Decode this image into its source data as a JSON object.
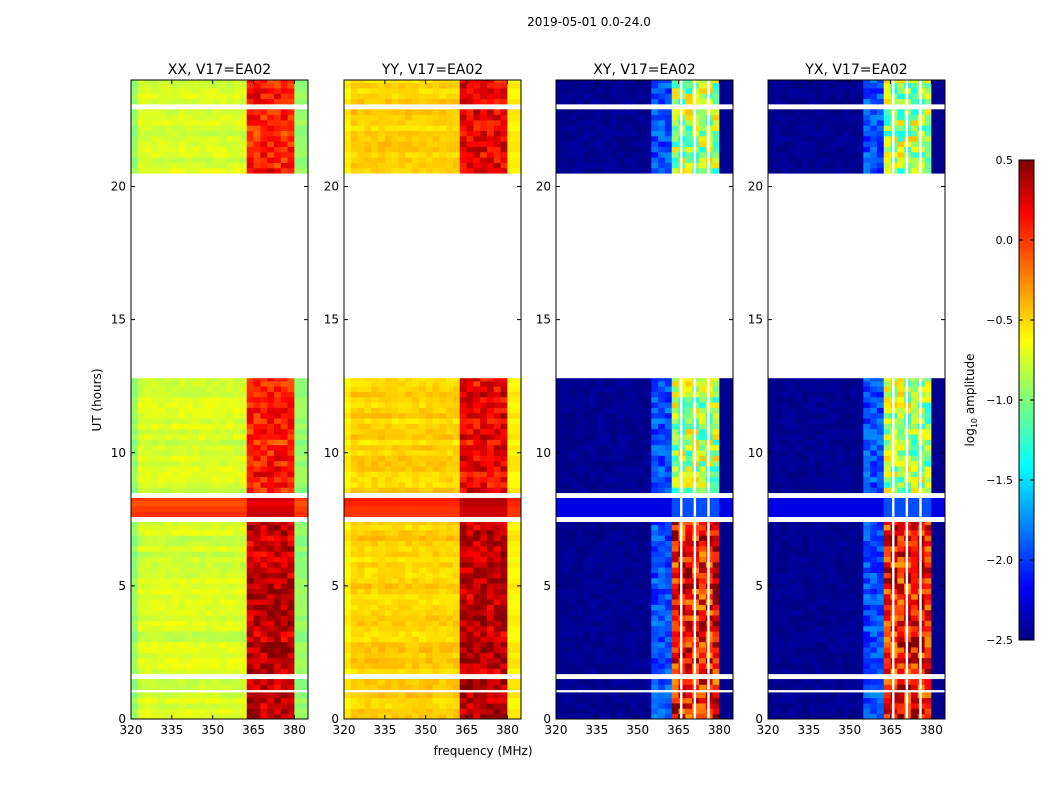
{
  "chart_data": {
    "type": "heatmap",
    "title": "2019-05-01 0.0-24.0",
    "xlabel": "frequency (MHz)",
    "ylabel": "UT (hours)",
    "xlim": [
      320,
      385
    ],
    "ylim": [
      0,
      24
    ],
    "xticks": [
      "320",
      "335",
      "350",
      "365",
      "380"
    ],
    "xtick_values": [
      320,
      335,
      350,
      365,
      380
    ],
    "yticks": [
      "0",
      "5",
      "10",
      "15",
      "20"
    ],
    "ytick_values": [
      0,
      5,
      10,
      15,
      20
    ],
    "colorbar": {
      "label_prefix": "log",
      "label_sub": "10",
      "label_suffix": " amplitude",
      "range": [
        -2.5,
        0.5
      ],
      "ticks": [
        "0.5",
        "0.0",
        "−0.5",
        "−1.0",
        "−1.5",
        "−2.0",
        "−2.5"
      ],
      "tick_values": [
        0.5,
        0.0,
        -0.5,
        -1.0,
        -1.5,
        -2.0,
        -2.5
      ],
      "colormap": "jet"
    },
    "data_segments_hours": [
      [
        0,
        1.0
      ],
      [
        1.1,
        1.5
      ],
      [
        1.7,
        7.4
      ],
      [
        7.6,
        8.3
      ],
      [
        8.5,
        12.8
      ],
      [
        20.5,
        22.9
      ],
      [
        23.1,
        24
      ]
    ],
    "bright_band_mhz": [
      362,
      380
    ],
    "flagged_channels_mhz": [
      366,
      371,
      376
    ],
    "panels": [
      {
        "title": "XX, V17=EA02",
        "baseline": -0.75,
        "edge": -0.95,
        "band_day": 0.3,
        "band_night": 0.05,
        "evening_row": -0.05,
        "cross": false
      },
      {
        "title": "YY, V17=EA02",
        "baseline": -0.5,
        "edge": -0.6,
        "band_day": 0.3,
        "band_night": 0.15,
        "evening_row": 0.0,
        "cross": false
      },
      {
        "title": "XY, V17=EA02",
        "baseline": -2.45,
        "edge": -2.45,
        "band_day": 0.1,
        "band_night": -0.9,
        "evening_row": -2.2,
        "cross": true
      },
      {
        "title": "YX, V17=EA02",
        "baseline": -2.45,
        "edge": -2.45,
        "band_day": 0.1,
        "band_night": -0.9,
        "evening_row": -2.2,
        "cross": true
      }
    ]
  }
}
